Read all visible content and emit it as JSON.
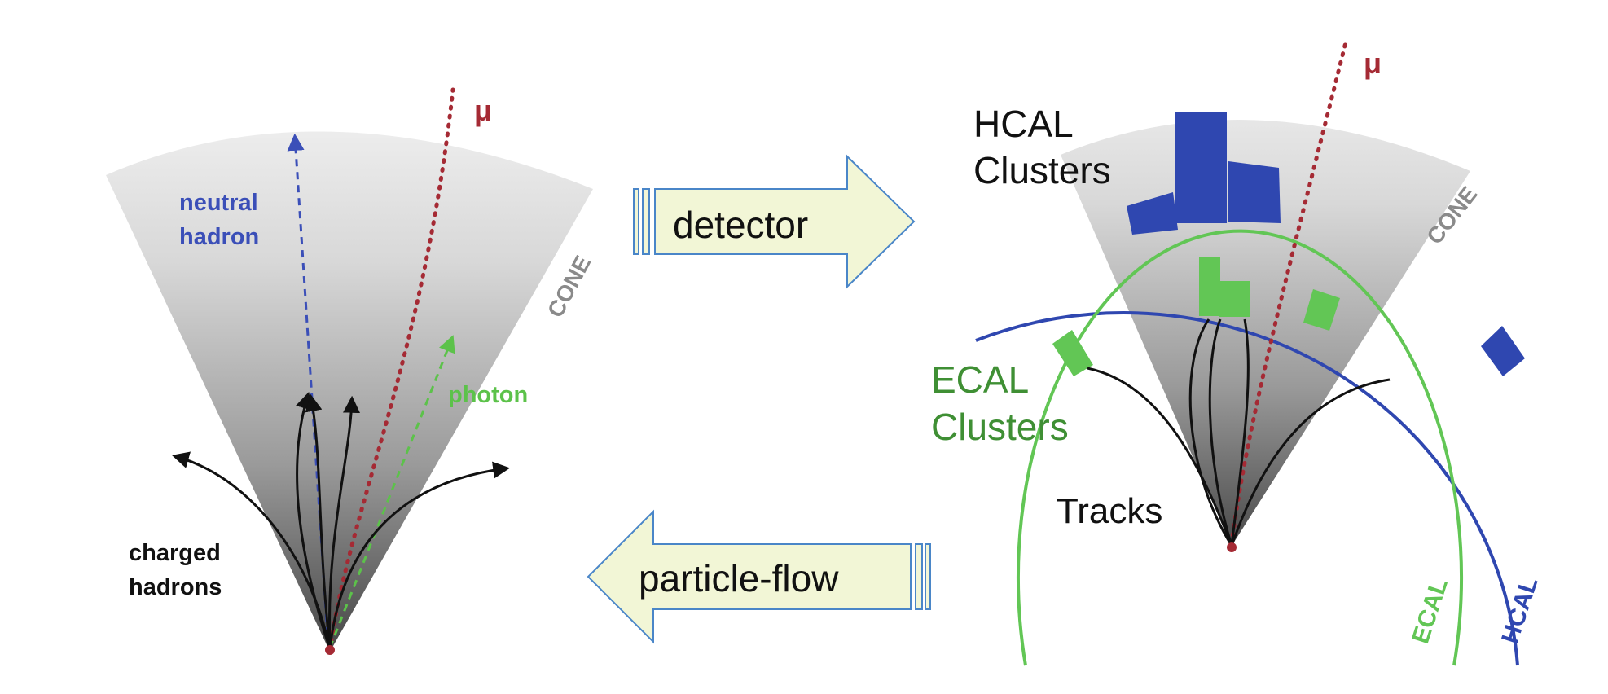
{
  "left_panel": {
    "neutral_hadron_label": [
      "neutral",
      "hadron"
    ],
    "photon_label": "photon",
    "charged_hadrons_label": [
      "charged",
      "hadrons"
    ],
    "muon_label": "μ",
    "cone_label": "CONE"
  },
  "arrows": {
    "detector_label": "detector",
    "particle_flow_label": "particle-flow"
  },
  "right_panel": {
    "hcal_clusters_label": [
      "HCAL",
      "Clusters"
    ],
    "ecal_clusters_label": [
      "ECAL",
      "Clusters"
    ],
    "tracks_label": "Tracks",
    "muon_label": "μ",
    "cone_label": "CONE",
    "ecal_ring_label": "ECAL",
    "hcal_ring_label": "HCAL"
  },
  "colors": {
    "neutral_hadron": "#3b4fb8",
    "photon": "#5cc24a",
    "muon": "#a52a34",
    "charged": "#111111",
    "hcal": "#2f47b0",
    "ecal": "#62c655",
    "cone_label": "#8a8a8a",
    "arrow_fill": "#f2f6d6",
    "arrow_stroke": "#4a86c8"
  }
}
